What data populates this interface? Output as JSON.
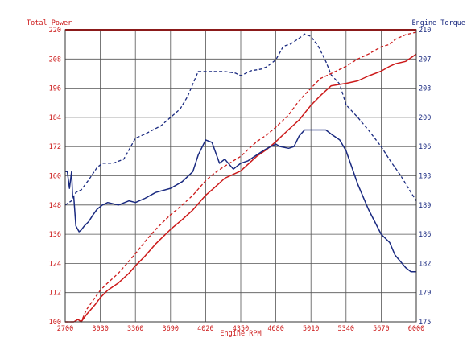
{
  "chart_data": {
    "type": "line",
    "left_axis_title": "Total Power",
    "right_axis_title": "Engine Torque",
    "xlabel": "Engine RPM",
    "x_ticks": [
      "2700",
      "3030",
      "3360",
      "3690",
      "4020",
      "4350",
      "4680",
      "5010",
      "5340",
      "5670",
      "6000"
    ],
    "y_left_ticks": [
      "100",
      "112",
      "124",
      "136",
      "148",
      "160",
      "172",
      "184",
      "196",
      "208",
      "220"
    ],
    "y_right_ticks": [
      "175",
      "179",
      "182",
      "186",
      "189",
      "193",
      "196",
      "200",
      "203",
      "207",
      "210"
    ],
    "xlim": [
      2700,
      6000
    ],
    "ylim_left": [
      100,
      220
    ],
    "ylim_right": [
      175,
      210
    ],
    "grid": true,
    "colors": {
      "power": "#cc1a1a",
      "torque": "#1a2a80",
      "left_axis": "#cc1a1a",
      "right_axis": "#1a2a80",
      "grid": "#555555"
    },
    "series": [
      {
        "axis": "left",
        "style": "solid",
        "color": "#cc1a1a",
        "x": [
          2700,
          2780,
          2820,
          2850,
          2900,
          2980,
          3030,
          3100,
          3200,
          3300,
          3360,
          3450,
          3550,
          3690,
          3800,
          3900,
          4020,
          4100,
          4200,
          4350,
          4450,
          4500,
          4600,
          4680,
          4800,
          4900,
          5010,
          5100,
          5200,
          5340,
          5450,
          5550,
          5670,
          5750,
          5800,
          5900,
          6000
        ],
        "y": [
          100,
          100,
          101,
          100,
          103,
          107,
          110,
          113,
          116,
          120,
          123,
          127,
          132,
          138,
          142,
          146,
          152,
          155,
          159,
          162,
          166,
          168,
          171,
          174,
          179,
          183,
          189,
          193,
          197,
          198,
          199,
          201,
          203,
          205,
          206,
          207,
          210
        ]
      },
      {
        "axis": "left",
        "style": "dashed",
        "color": "#cc1a1a",
        "x": [
          2700,
          2780,
          2820,
          2850,
          2900,
          2980,
          3030,
          3100,
          3200,
          3300,
          3360,
          3450,
          3550,
          3690,
          3800,
          3900,
          4020,
          4100,
          4200,
          4350,
          4450,
          4500,
          4600,
          4680,
          4800,
          4900,
          5010,
          5100,
          5200,
          5340,
          5450,
          5550,
          5670,
          5750,
          5800,
          5900,
          6000
        ],
        "y": [
          100,
          100,
          101,
          100,
          105,
          110,
          113,
          116,
          120,
          125,
          128,
          133,
          138,
          144,
          148,
          152,
          158,
          161,
          164,
          168,
          172,
          174,
          177,
          180,
          185,
          191,
          196,
          200,
          202,
          205,
          208,
          210,
          213,
          214,
          216,
          218,
          219
        ]
      },
      {
        "axis": "right",
        "style": "solid",
        "color": "#1a2a80",
        "x": [
          2700,
          2720,
          2740,
          2760,
          2770,
          2780,
          2800,
          2830,
          2850,
          2880,
          2920,
          2960,
          3000,
          3050,
          3100,
          3200,
          3300,
          3360,
          3450,
          3550,
          3690,
          3800,
          3900,
          3950,
          4020,
          4080,
          4150,
          4200,
          4280,
          4350,
          4420,
          4500,
          4560,
          4600,
          4680,
          4720,
          4800,
          4850,
          4900,
          4950,
          5010,
          5080,
          5150,
          5200,
          5280,
          5340,
          5450,
          5550,
          5670,
          5750,
          5800,
          5900,
          5950,
          6000
        ],
        "y": [
          193,
          193,
          191,
          193,
          190,
          190,
          186.5,
          185.8,
          186,
          186.5,
          187,
          187.8,
          188.5,
          189,
          189.3,
          189,
          189.5,
          189.3,
          189.8,
          190.5,
          191,
          191.8,
          193,
          195,
          196.8,
          196.5,
          194,
          194.5,
          193.3,
          194,
          194.3,
          195,
          195.5,
          195.8,
          196.3,
          196,
          195.8,
          196,
          197.3,
          198,
          198,
          198,
          198,
          197.5,
          196.8,
          195.5,
          191.5,
          188.5,
          185.5,
          184.5,
          183,
          181.5,
          181,
          181
        ]
      },
      {
        "axis": "right",
        "style": "dashed",
        "color": "#1a2a80",
        "x": [
          2700,
          2760,
          2800,
          2850,
          2920,
          3000,
          3050,
          3150,
          3250,
          3360,
          3450,
          3600,
          3690,
          3780,
          3850,
          3900,
          3950,
          4020,
          4100,
          4200,
          4300,
          4350,
          4450,
          4500,
          4550,
          4600,
          4680,
          4750,
          4820,
          4900,
          4950,
          5010,
          5080,
          5150,
          5200,
          5280,
          5340,
          5450,
          5550,
          5670,
          5750,
          5850,
          5950,
          6000
        ],
        "y": [
          189,
          189.5,
          190.5,
          190.8,
          192,
          193.5,
          194,
          194,
          194.5,
          197,
          197.5,
          198.5,
          199.5,
          200.5,
          202,
          203.5,
          205,
          205,
          205,
          205,
          204.8,
          204.5,
          205.1,
          205.2,
          205.3,
          205.6,
          206.4,
          208,
          208.3,
          209,
          209.5,
          209.2,
          208,
          206.2,
          204.6,
          203.5,
          201,
          199.5,
          198,
          196,
          194.4,
          192.6,
          190.5,
          189.5
        ]
      }
    ]
  }
}
